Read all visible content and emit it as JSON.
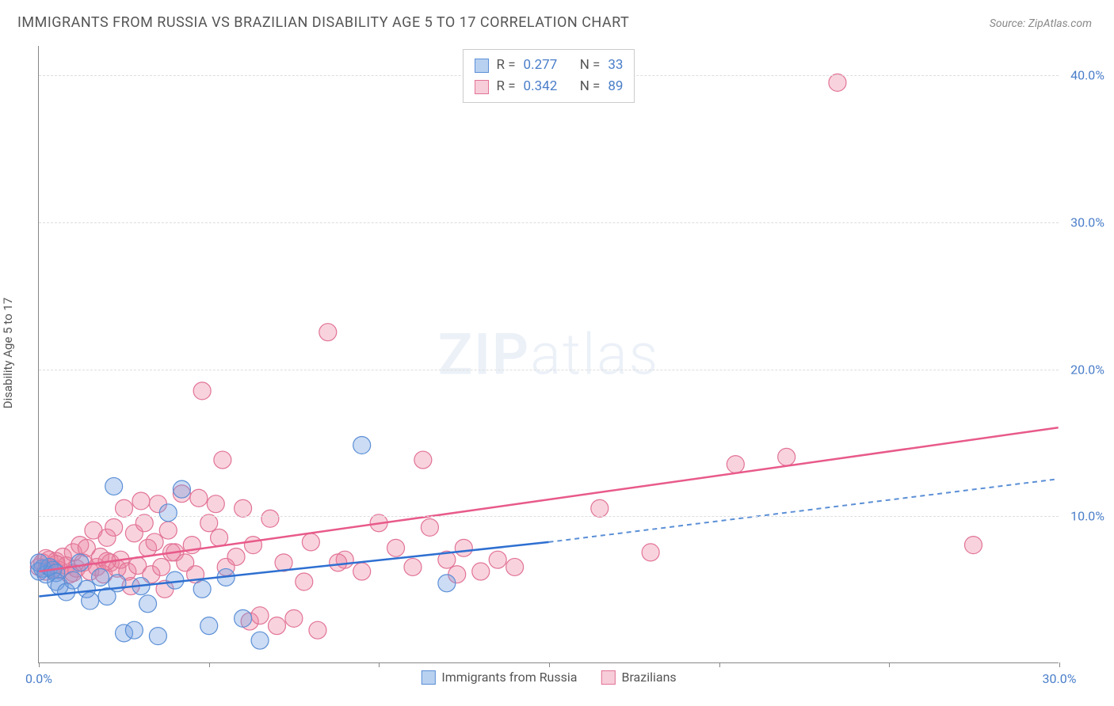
{
  "title": "IMMIGRANTS FROM RUSSIA VS BRAZILIAN DISABILITY AGE 5 TO 17 CORRELATION CHART",
  "source": "Source: ZipAtlas.com",
  "y_axis_label": "Disability Age 5 to 17",
  "watermark_bold": "ZIP",
  "watermark_light": "atlas",
  "chart": {
    "type": "scatter",
    "xlim": [
      0,
      30
    ],
    "ylim": [
      0,
      42
    ],
    "x_ticks": [
      0,
      5,
      10,
      15,
      20,
      25,
      30
    ],
    "x_tick_labels": {
      "0": "0.0%",
      "30": "30.0%"
    },
    "y_ticks": [
      10,
      20,
      30,
      40
    ],
    "y_tick_labels": {
      "10": "10.0%",
      "20": "20.0%",
      "30": "30.0%",
      "40": "40.0%"
    },
    "grid_color": "#dddddd",
    "axis_color": "#888888",
    "background_color": "#ffffff",
    "series": [
      {
        "name": "Immigrants from Russia",
        "legend_label": "Immigrants from Russia",
        "fill_color": "rgba(108,156,224,0.35)",
        "stroke_color": "#5b8fd6",
        "swatch_fill": "#b9d1f0",
        "swatch_border": "#5b8fd6",
        "line_color": "#2e6fd1",
        "line_dash_color": "#5b8fd6",
        "marker_radius": 11,
        "R": "0.277",
        "N": "33",
        "regression": {
          "x1": 0,
          "y1": 4.5,
          "x2_solid": 15,
          "y2_solid": 8.2,
          "x2": 30,
          "y2": 12.5
        },
        "points": [
          [
            0.0,
            6.2
          ],
          [
            0.1,
            6.4
          ],
          [
            0.2,
            6.0
          ],
          [
            0.3,
            6.5
          ],
          [
            0.4,
            6.3
          ],
          [
            0.5,
            6.1
          ],
          [
            0.5,
            5.5
          ],
          [
            0.6,
            5.2
          ],
          [
            0.8,
            4.8
          ],
          [
            1.0,
            5.6
          ],
          [
            1.2,
            6.8
          ],
          [
            1.4,
            5.0
          ],
          [
            1.5,
            4.2
          ],
          [
            1.8,
            5.8
          ],
          [
            2.0,
            4.5
          ],
          [
            2.2,
            12.0
          ],
          [
            2.3,
            5.4
          ],
          [
            2.5,
            2.0
          ],
          [
            2.8,
            2.2
          ],
          [
            3.0,
            5.2
          ],
          [
            3.2,
            4.0
          ],
          [
            3.5,
            1.8
          ],
          [
            3.8,
            10.2
          ],
          [
            4.0,
            5.6
          ],
          [
            4.2,
            11.8
          ],
          [
            4.8,
            5.0
          ],
          [
            5.0,
            2.5
          ],
          [
            5.5,
            5.8
          ],
          [
            6.0,
            3.0
          ],
          [
            6.5,
            1.5
          ],
          [
            9.5,
            14.8
          ],
          [
            12.0,
            5.4
          ],
          [
            0.0,
            6.8
          ]
        ]
      },
      {
        "name": "Brazilians",
        "legend_label": "Brazilians",
        "fill_color": "rgba(236,130,160,0.35)",
        "stroke_color": "#e27396",
        "swatch_fill": "#f7cdd9",
        "swatch_border": "#e27396",
        "line_color": "#e85a8a",
        "marker_radius": 11,
        "R": "0.342",
        "N": "89",
        "regression": {
          "x1": 0,
          "y1": 6.2,
          "x2": 30,
          "y2": 16.0
        },
        "points": [
          [
            0.0,
            6.5
          ],
          [
            0.1,
            6.8
          ],
          [
            0.2,
            6.2
          ],
          [
            0.3,
            7.0
          ],
          [
            0.4,
            6.4
          ],
          [
            0.5,
            6.9
          ],
          [
            0.6,
            6.3
          ],
          [
            0.7,
            7.2
          ],
          [
            0.8,
            6.6
          ],
          [
            0.9,
            6.0
          ],
          [
            1.0,
            7.5
          ],
          [
            1.1,
            6.4
          ],
          [
            1.2,
            8.0
          ],
          [
            1.3,
            6.8
          ],
          [
            1.4,
            7.8
          ],
          [
            1.5,
            6.2
          ],
          [
            1.6,
            9.0
          ],
          [
            1.7,
            6.5
          ],
          [
            1.8,
            7.2
          ],
          [
            1.9,
            6.0
          ],
          [
            2.0,
            8.5
          ],
          [
            2.1,
            6.8
          ],
          [
            2.2,
            9.2
          ],
          [
            2.3,
            6.4
          ],
          [
            2.4,
            7.0
          ],
          [
            2.5,
            10.5
          ],
          [
            2.6,
            6.2
          ],
          [
            2.7,
            5.2
          ],
          [
            2.8,
            8.8
          ],
          [
            2.9,
            6.6
          ],
          [
            3.0,
            11.0
          ],
          [
            3.1,
            9.5
          ],
          [
            3.2,
            7.8
          ],
          [
            3.3,
            6.0
          ],
          [
            3.4,
            8.2
          ],
          [
            3.5,
            10.8
          ],
          [
            3.6,
            6.5
          ],
          [
            3.7,
            5.0
          ],
          [
            3.8,
            9.0
          ],
          [
            4.0,
            7.5
          ],
          [
            4.2,
            11.5
          ],
          [
            4.3,
            6.8
          ],
          [
            4.5,
            8.0
          ],
          [
            4.7,
            11.2
          ],
          [
            4.8,
            18.5
          ],
          [
            5.0,
            9.5
          ],
          [
            5.2,
            10.8
          ],
          [
            5.4,
            13.8
          ],
          [
            5.5,
            6.5
          ],
          [
            5.8,
            7.2
          ],
          [
            6.0,
            10.5
          ],
          [
            6.2,
            2.8
          ],
          [
            6.5,
            3.2
          ],
          [
            6.8,
            9.8
          ],
          [
            7.0,
            2.5
          ],
          [
            7.2,
            6.8
          ],
          [
            7.5,
            3.0
          ],
          [
            8.0,
            8.2
          ],
          [
            8.2,
            2.2
          ],
          [
            8.5,
            22.5
          ],
          [
            9.0,
            7.0
          ],
          [
            9.5,
            6.2
          ],
          [
            10.0,
            9.5
          ],
          [
            10.5,
            7.8
          ],
          [
            11.0,
            6.5
          ],
          [
            11.3,
            13.8
          ],
          [
            11.5,
            9.2
          ],
          [
            12.0,
            7.0
          ],
          [
            12.3,
            6.0
          ],
          [
            12.5,
            7.8
          ],
          [
            13.0,
            6.2
          ],
          [
            13.5,
            7.0
          ],
          [
            14.0,
            6.5
          ],
          [
            16.5,
            10.5
          ],
          [
            18.0,
            7.5
          ],
          [
            20.5,
            13.5
          ],
          [
            22.0,
            14.0
          ],
          [
            23.5,
            39.5
          ],
          [
            27.5,
            8.0
          ],
          [
            4.6,
            6.0
          ],
          [
            5.3,
            8.5
          ],
          [
            6.3,
            8.0
          ],
          [
            7.8,
            5.5
          ],
          [
            8.8,
            6.8
          ],
          [
            3.9,
            7.5
          ],
          [
            2.0,
            6.9
          ],
          [
            1.0,
            6.1
          ],
          [
            0.5,
            6.7
          ],
          [
            0.2,
            7.1
          ]
        ]
      }
    ]
  },
  "stats_labels": {
    "R": "R =",
    "N": "N ="
  }
}
